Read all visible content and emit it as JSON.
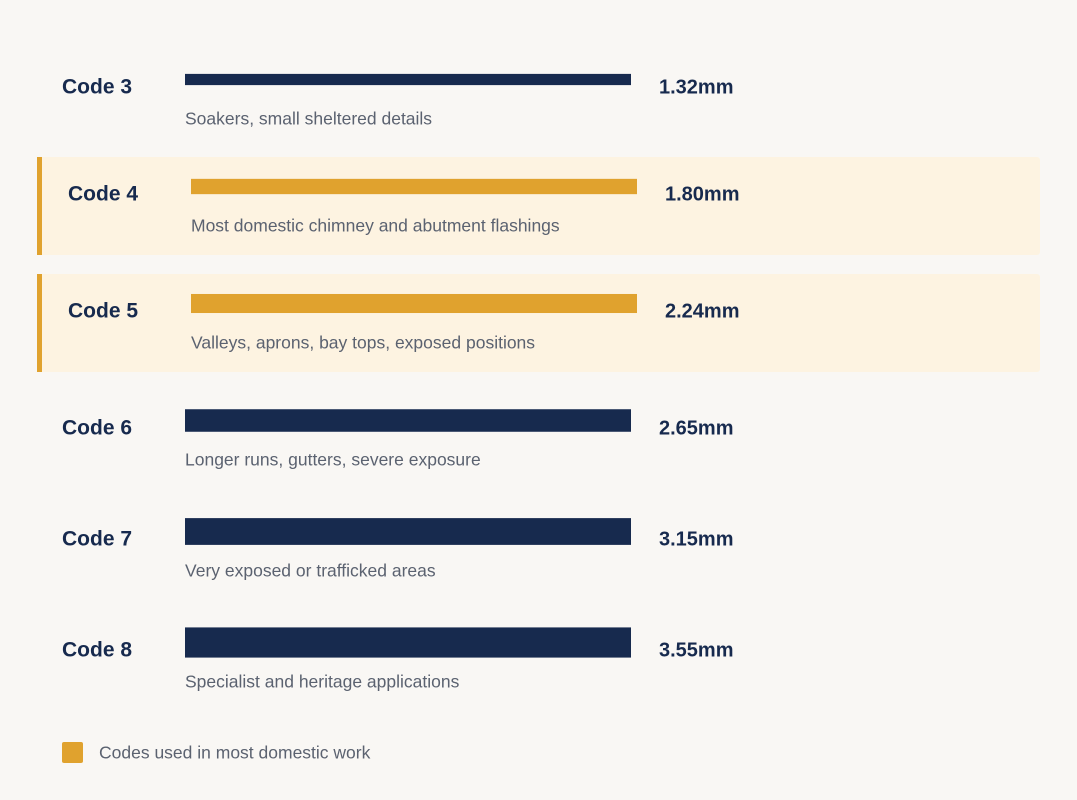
{
  "chart_data": {
    "type": "bar",
    "categories": [
      "Code 3",
      "Code 4",
      "Code 5",
      "Code 6",
      "Code 7",
      "Code 8"
    ],
    "descriptions": [
      "Soakers, small sheltered details",
      "Most domestic chimney and abutment flashings",
      "Valleys, aprons, bay tops, exposed positions",
      "Longer runs, gutters, severe exposure",
      "Very exposed or trafficked areas",
      "Specialist and heritage applications"
    ],
    "values": [
      1.32,
      1.8,
      2.24,
      2.65,
      3.15,
      3.55
    ],
    "value_labels": [
      "1.32mm",
      "1.80mm",
      "2.24mm",
      "2.65mm",
      "3.15mm",
      "3.55mm"
    ],
    "highlighted": [
      false,
      true,
      true,
      false,
      false,
      false
    ],
    "color": "#172a4e",
    "highlight_color": "#e0a22e",
    "legend": {
      "label": "Codes used in most domestic work"
    }
  }
}
